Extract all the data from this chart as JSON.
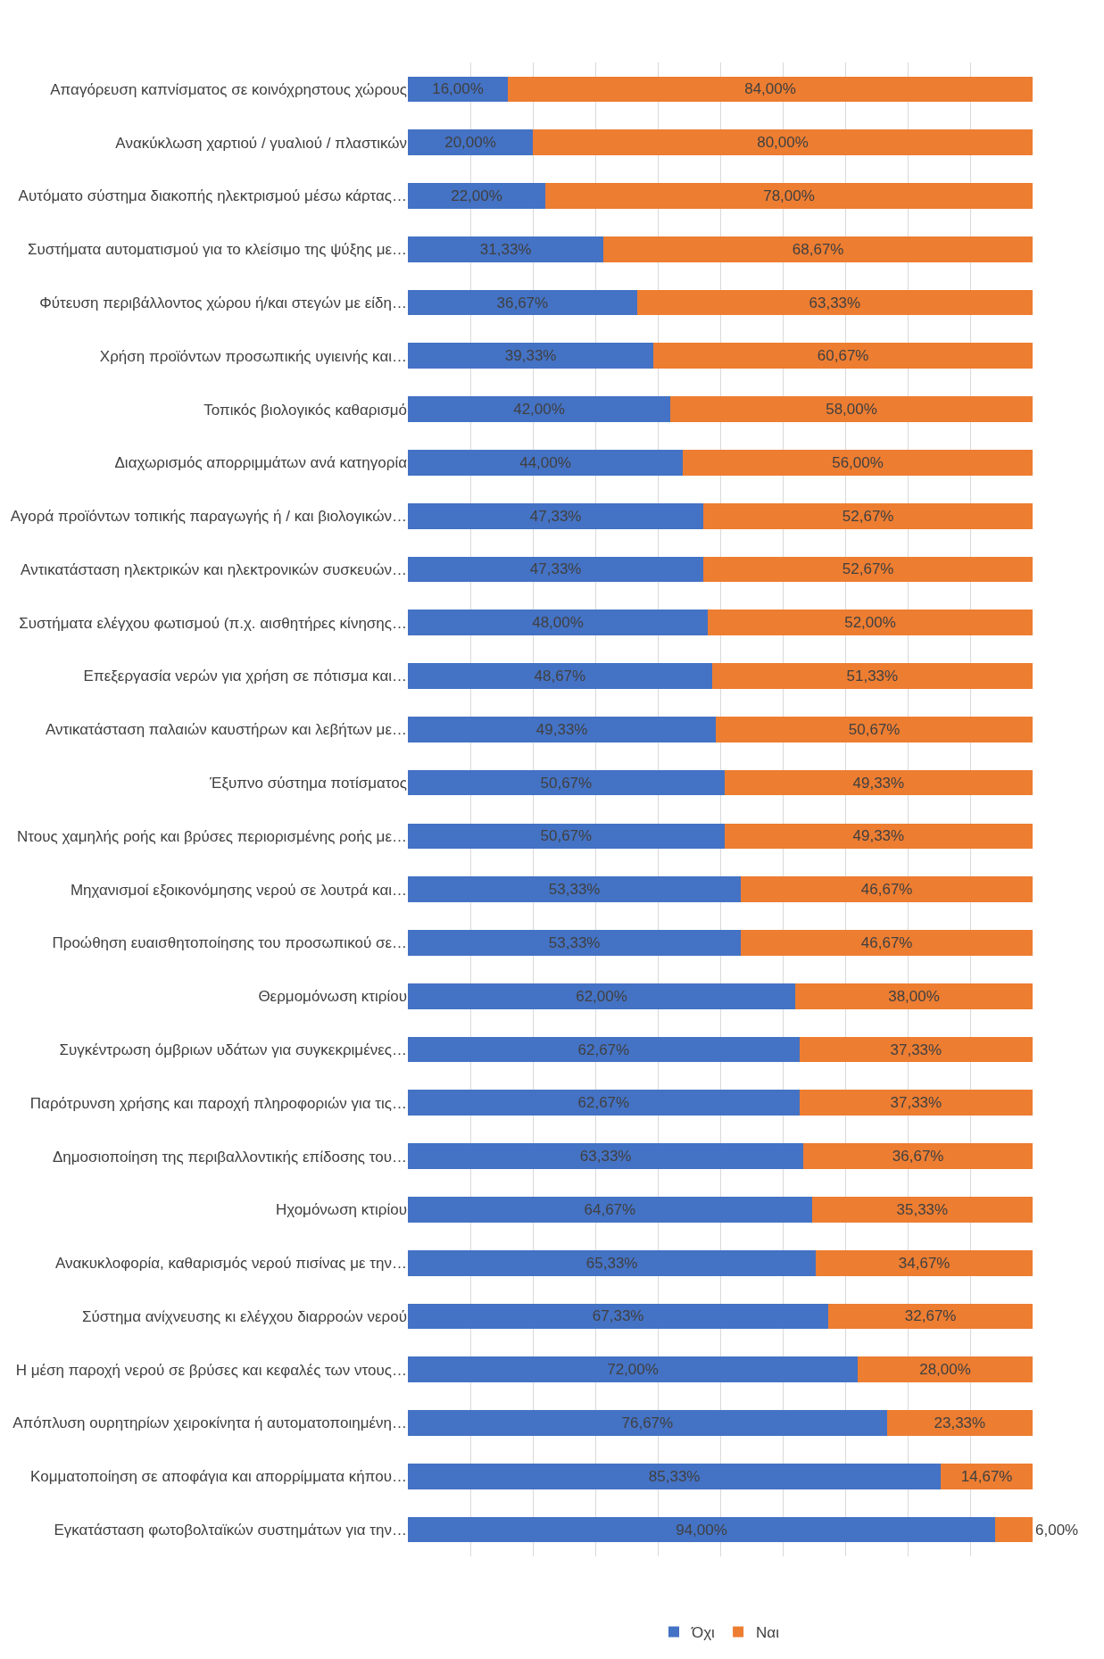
{
  "chart_data": {
    "type": "bar",
    "orientation": "horizontal",
    "stacked": true,
    "categories": [
      "Απαγόρευση καπνίσματος σε κοινόχρηστους χώρους",
      "Ανακύκλωση χαρτιού / γυαλιού / πλαστικών",
      "Αυτόματο σύστημα διακοπής ηλεκτρισμού μέσω κάρτας…",
      "Συστήματα αυτοματισμού για το κλείσιμο της ψύξης με…",
      "Φύτευση περιβάλλοντος χώρου ή/και στεγών με είδη…",
      "Χρήση προϊόντων προσωπικής υγιεινής και…",
      "Τοπικός βιολογικός καθαρισμό",
      "Διαχωρισμός απορριμμάτων ανά κατηγορία",
      "Αγορά προϊόντων τοπικής παραγωγής ή / και βιολογικών…",
      "Αντικατάσταση ηλεκτρικών και ηλεκτρονικών συσκευών…",
      "Συστήματα ελέγχου φωτισμού (π.χ. αισθητήρες κίνησης…",
      "Επεξεργασία νερών για χρήση σε πότισμα και…",
      "Αντικατάσταση παλαιών καυστήρων και λεβήτων με…",
      "Έξυπνο σύστημα ποτίσματος",
      "Ντους χαμηλής ροής και βρύσες περιορισμένης ροής με…",
      "Μηχανισμοί εξοικονόμησης νερού σε λουτρά και…",
      "Προώθηση ευαισθητοποίησης του προσωπικού σε…",
      "Θερμομόνωση κτιρίου",
      "Συγκέντρωση όμβριων υδάτων για συγκεκριμένες…",
      "Παρότρυνση χρήσης και παροχή πληροφοριών για τις…",
      "Δημοσιοποίηση της περιβαλλοντικής επίδοσης του…",
      "Ηχομόνωση κτιρίου",
      "Ανακυκλοφορία, καθαρισμός νερού πισίνας με την…",
      "Σύστημα ανίχνευσης κι ελέγχου διαρροών νερού",
      "Η μέση παροχή νερού σε βρύσες και κεφαλές των ντους…",
      "Απόπλυση ουρητηρίων χειροκίνητα ή αυτοματοποιημένη…",
      "Κομματοποίηση σε αποφάγια και απορρίμματα κήπου…",
      "Εγκατάσταση φωτοβολταϊκών συστημάτων για την…"
    ],
    "series": [
      {
        "name": "Όχι",
        "color": "#4472c4",
        "values": [
          16.0,
          20.0,
          22.0,
          31.33,
          36.67,
          39.33,
          42.0,
          44.0,
          47.33,
          47.33,
          48.0,
          48.67,
          49.33,
          50.67,
          50.67,
          53.33,
          53.33,
          62.0,
          62.67,
          62.67,
          63.33,
          64.67,
          65.33,
          67.33,
          72.0,
          76.67,
          85.33,
          94.0
        ],
        "value_labels": [
          "16,00%",
          "20,00%",
          "22,00%",
          "31,33%",
          "36,67%",
          "39,33%",
          "42,00%",
          "44,00%",
          "47,33%",
          "47,33%",
          "48,00%",
          "48,67%",
          "49,33%",
          "50,67%",
          "50,67%",
          "53,33%",
          "53,33%",
          "62,00%",
          "62,67%",
          "62,67%",
          "63,33%",
          "64,67%",
          "65,33%",
          "67,33%",
          "72,00%",
          "76,67%",
          "85,33%",
          "94,00%"
        ]
      },
      {
        "name": "Ναι",
        "color": "#ed7d31",
        "values": [
          84.0,
          80.0,
          78.0,
          68.67,
          63.33,
          60.67,
          58.0,
          56.0,
          52.67,
          52.67,
          52.0,
          51.33,
          50.67,
          49.33,
          49.33,
          46.67,
          46.67,
          38.0,
          37.33,
          37.33,
          36.67,
          35.33,
          34.67,
          32.67,
          28.0,
          23.33,
          14.67,
          6.0
        ],
        "value_labels": [
          "84,00%",
          "80,00%",
          "78,00%",
          "68,67%",
          "63,33%",
          "60,67%",
          "58,00%",
          "56,00%",
          "52,67%",
          "52,67%",
          "52,00%",
          "51,33%",
          "50,67%",
          "49,33%",
          "49,33%",
          "46,67%",
          "46,67%",
          "38,00%",
          "37,33%",
          "37,33%",
          "36,67%",
          "35,33%",
          "34,67%",
          "32,67%",
          "28,00%",
          "23,33%",
          "14,67%",
          "6,00%"
        ]
      }
    ],
    "xlim": [
      0,
      100
    ],
    "grid": "x",
    "legend": "bottom",
    "tick_labels": "y"
  }
}
